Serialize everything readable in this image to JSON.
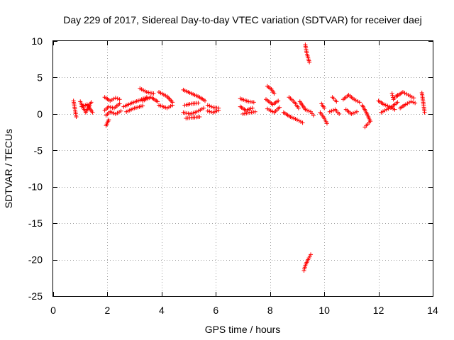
{
  "chart_data": {
    "type": "scatter",
    "title": "Day 229 of 2017, Sidereal Day-to-day VTEC variation (SDTVAR) for receiver daej",
    "xlabel": "GPS time / hours",
    "ylabel": "SDTVAR / TECUs",
    "xlim": [
      0,
      14
    ],
    "ylim": [
      -25,
      10
    ],
    "xticks": [
      0,
      2,
      4,
      6,
      8,
      10,
      12,
      14
    ],
    "yticks": [
      10,
      5,
      0,
      -5,
      -10,
      -15,
      -20,
      -25
    ],
    "grid": true,
    "marker": "plus",
    "marker_color": "#ff0000",
    "series": [
      {
        "name": "SDTVAR",
        "segments": [
          {
            "x": [
              0.75,
              0.85
            ],
            "y": [
              1.8,
              -0.4
            ]
          },
          {
            "x": [
              1.0,
              1.2,
              1.4
            ],
            "y": [
              1.7,
              0.2,
              1.6
            ]
          },
          {
            "x": [
              1.05,
              1.25,
              1.45
            ],
            "y": [
              1.0,
              1.3,
              0.2
            ]
          },
          {
            "x": [
              1.9,
              2.1,
              2.3,
              2.45
            ],
            "y": [
              2.3,
              1.8,
              2.2,
              2.0
            ]
          },
          {
            "x": [
              1.9,
              2.05,
              2.25,
              2.45
            ],
            "y": [
              0.5,
              1.0,
              0.8,
              1.4
            ]
          },
          {
            "x": [
              1.95,
              2.1,
              2.3,
              2.5
            ],
            "y": [
              -0.2,
              0.3,
              0.0,
              0.4
            ]
          },
          {
            "x": [
              1.95,
              2.05
            ],
            "y": [
              -1.6,
              -0.8
            ]
          },
          {
            "x": [
              2.6,
              2.9,
              3.2,
              3.45
            ],
            "y": [
              1.0,
              1.5,
              1.9,
              2.3
            ]
          },
          {
            "x": [
              2.7,
              3.0,
              3.3
            ],
            "y": [
              0.3,
              0.8,
              1.1
            ]
          },
          {
            "x": [
              3.2,
              3.45,
              3.7
            ],
            "y": [
              3.5,
              3.0,
              2.8
            ]
          },
          {
            "x": [
              3.3,
              3.6,
              3.85
            ],
            "y": [
              1.8,
              2.3,
              1.7
            ]
          },
          {
            "x": [
              3.9,
              4.2,
              4.4
            ],
            "y": [
              3.0,
              2.4,
              1.6
            ]
          },
          {
            "x": [
              3.9,
              4.2,
              4.4
            ],
            "y": [
              1.2,
              0.8,
              1.2
            ]
          },
          {
            "x": [
              4.8,
              5.1,
              5.4,
              5.6
            ],
            "y": [
              3.3,
              2.8,
              2.3,
              1.8
            ]
          },
          {
            "x": [
              4.85,
              5.1,
              5.35
            ],
            "y": [
              1.2,
              1.4,
              1.5
            ]
          },
          {
            "x": [
              4.8,
              5.05,
              5.3,
              5.55
            ],
            "y": [
              0.2,
              0.0,
              0.3,
              0.8
            ]
          },
          {
            "x": [
              4.9,
              5.1,
              5.4
            ],
            "y": [
              -0.6,
              -0.5,
              -0.4
            ]
          },
          {
            "x": [
              5.7,
              5.9,
              6.1
            ],
            "y": [
              1.2,
              0.9,
              0.8
            ]
          },
          {
            "x": [
              5.7,
              5.9,
              6.1
            ],
            "y": [
              0.4,
              0.2,
              0.5
            ]
          },
          {
            "x": [
              6.9,
              7.2,
              7.4
            ],
            "y": [
              2.1,
              1.7,
              1.6
            ]
          },
          {
            "x": [
              6.9,
              7.1,
              7.35
            ],
            "y": [
              1.0,
              0.5,
              0.8
            ]
          },
          {
            "x": [
              7.0,
              7.25,
              7.45
            ],
            "y": [
              0.0,
              0.2,
              0.3
            ]
          },
          {
            "x": [
              7.9,
              8.05,
              8.15
            ],
            "y": [
              3.8,
              3.4,
              2.8
            ]
          },
          {
            "x": [
              7.85,
              8.1,
              8.3
            ],
            "y": [
              2.0,
              1.3,
              1.8
            ]
          },
          {
            "x": [
              7.9,
              8.15,
              8.35
            ],
            "y": [
              0.7,
              0.2,
              0.9
            ]
          },
          {
            "x": [
              8.5,
              8.75,
              9.0,
              9.2
            ],
            "y": [
              0.2,
              -0.4,
              -0.8,
              -1.2
            ]
          },
          {
            "x": [
              8.7,
              8.9,
              9.05
            ],
            "y": [
              2.3,
              1.6,
              0.8
            ]
          },
          {
            "x": [
              9.1,
              9.3,
              9.5,
              9.6
            ],
            "y": [
              1.7,
              0.6,
              0.3,
              -0.2
            ]
          },
          {
            "x": [
              9.3,
              9.35,
              9.45
            ],
            "y": [
              9.5,
              8.4,
              7.1
            ]
          },
          {
            "x": [
              9.25,
              9.3,
              9.4,
              9.5
            ],
            "y": [
              -21.5,
              -20.8,
              -20.0,
              -19.3
            ]
          },
          {
            "x": [
              9.9,
              10.0
            ],
            "y": [
              1.4,
              0.8
            ]
          },
          {
            "x": [
              9.85,
              10.0,
              10.1
            ],
            "y": [
              0.2,
              -0.6,
              -1.3
            ]
          },
          {
            "x": [
              10.3,
              10.45
            ],
            "y": [
              2.3,
              1.7
            ]
          },
          {
            "x": [
              10.2,
              10.4,
              10.55
            ],
            "y": [
              0.3,
              0.6,
              0.0
            ]
          },
          {
            "x": [
              10.7,
              10.9,
              11.1,
              11.3
            ],
            "y": [
              2.0,
              2.6,
              2.0,
              1.6
            ]
          },
          {
            "x": [
              10.8,
              11.0,
              11.2
            ],
            "y": [
              0.6,
              0.0,
              0.3
            ]
          },
          {
            "x": [
              11.4,
              11.55,
              11.7
            ],
            "y": [
              1.2,
              0.2,
              -1.0
            ]
          },
          {
            "x": [
              11.5,
              11.65
            ],
            "y": [
              -1.8,
              -1.2
            ]
          },
          {
            "x": [
              12.0,
              12.2,
              12.4,
              12.6
            ],
            "y": [
              1.8,
              1.3,
              1.0,
              0.6
            ]
          },
          {
            "x": [
              12.1,
              12.3,
              12.5,
              12.7
            ],
            "y": [
              0.2,
              0.6,
              1.0,
              1.6
            ]
          },
          {
            "x": [
              12.5,
              12.55,
              12.7
            ],
            "y": [
              2.8,
              2.0,
              2.6
            ]
          },
          {
            "x": [
              12.7,
              12.9,
              13.1,
              13.3
            ],
            "y": [
              2.5,
              3.0,
              2.6,
              2.2
            ]
          },
          {
            "x": [
              12.8,
              13.0,
              13.2,
              13.35
            ],
            "y": [
              0.8,
              1.3,
              1.7,
              1.5
            ]
          },
          {
            "x": [
              13.6,
              13.65,
              13.7
            ],
            "y": [
              2.9,
              1.6,
              0.2
            ]
          }
        ]
      }
    ]
  }
}
